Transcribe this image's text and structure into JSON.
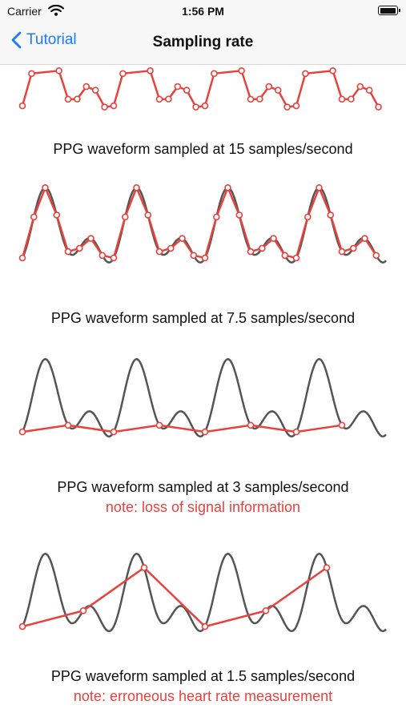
{
  "status_bar": {
    "carrier": "Carrier",
    "time": "1:56 PM",
    "battery": 1.0
  },
  "nav": {
    "back_label": "Tutorial",
    "title": "Sampling rate"
  },
  "colors": {
    "accent": "#1a7cf2",
    "sample_line": "#e8423d",
    "waveform": "#555555"
  },
  "sections": [
    {
      "caption": "PPG waveform sampled at 15 samples/second",
      "note": ""
    },
    {
      "caption": "PPG waveform sampled at 7.5 samples/second",
      "note": ""
    },
    {
      "caption": "PPG waveform sampled at 3 samples/second",
      "note": "note: loss of signal information"
    },
    {
      "caption": "PPG waveform sampled at 1.5 samples/second",
      "note": "note: erroneous heart rate measurement"
    }
  ]
}
